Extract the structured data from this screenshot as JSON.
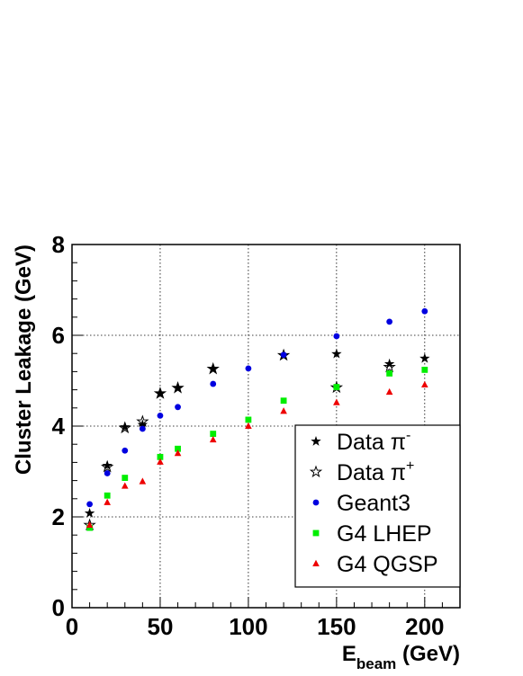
{
  "chart_data": {
    "type": "scatter",
    "xlabel_main": "E",
    "xlabel_sub": "beam",
    "xlabel_unit": " (GeV)",
    "ylabel": "Cluster Leakage (GeV)",
    "xlim": [
      0,
      220
    ],
    "ylim": [
      0,
      8
    ],
    "xticks": [
      0,
      50,
      100,
      150,
      200
    ],
    "yticks": [
      0,
      2,
      4,
      6,
      8
    ],
    "grid": true,
    "legend_position": "bottom-right",
    "series": [
      {
        "name": "Data π⁻",
        "name_base": "Data π",
        "name_sup": "-",
        "marker": "star-filled",
        "color": "#000000",
        "x": [
          10,
          20,
          30,
          40,
          50,
          60,
          80,
          120,
          150,
          180,
          200
        ],
        "y": [
          2.08,
          3.13,
          3.98,
          4.03,
          4.72,
          4.84,
          5.26,
          5.55,
          5.59,
          5.37,
          5.49
        ]
      },
      {
        "name": "Data π⁺",
        "name_base": "Data π",
        "name_sup": "+",
        "marker": "star-open",
        "color": "#000000",
        "x": [
          10,
          20,
          30,
          40,
          50,
          60,
          80,
          120,
          150,
          180
        ],
        "y": [
          1.82,
          3.1,
          3.96,
          4.1,
          4.72,
          4.84,
          5.26,
          5.56,
          4.85,
          5.3
        ]
      },
      {
        "name": "Geant3",
        "marker": "circle",
        "color": "#0000e0",
        "x": [
          10,
          20,
          30,
          40,
          50,
          60,
          80,
          100,
          120,
          150,
          180,
          200
        ],
        "y": [
          2.28,
          2.96,
          3.46,
          3.94,
          4.23,
          4.42,
          4.93,
          5.27,
          5.57,
          5.98,
          6.3,
          6.53
        ]
      },
      {
        "name": "G4 LHEP",
        "marker": "square",
        "color": "#00ee00",
        "x": [
          10,
          20,
          30,
          50,
          60,
          80,
          100,
          120,
          150,
          180,
          200
        ],
        "y": [
          1.76,
          2.47,
          2.86,
          3.32,
          3.5,
          3.83,
          4.14,
          4.56,
          4.86,
          5.16,
          5.24
        ]
      },
      {
        "name": "G4 QGSP",
        "marker": "triangle",
        "color": "#ee0000",
        "x": [
          10,
          20,
          30,
          40,
          50,
          60,
          80,
          100,
          120,
          150,
          180,
          200
        ],
        "y": [
          1.82,
          2.32,
          2.68,
          2.78,
          3.21,
          3.4,
          3.7,
          4.0,
          4.33,
          4.52,
          4.75,
          4.91
        ]
      }
    ]
  }
}
